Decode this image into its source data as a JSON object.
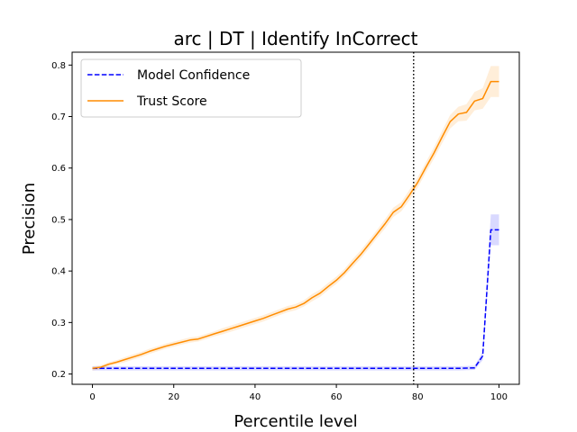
{
  "chart_data": {
    "type": "line",
    "title": "arc | DT | Identify InCorrect",
    "xlabel": "Percentile level",
    "ylabel": "Precision",
    "xlim": [
      -5,
      105
    ],
    "ylim": [
      0.18,
      0.825
    ],
    "xticks": [
      0,
      20,
      40,
      60,
      80,
      100
    ],
    "yticks": [
      0.2,
      0.3,
      0.4,
      0.5,
      0.6,
      0.7,
      0.8
    ],
    "grid": false,
    "legend": "top-left",
    "vline": {
      "x": 79,
      "style": "dotted",
      "color": "#000000"
    },
    "series": [
      {
        "name": "Model Confidence",
        "color": "#0000ff",
        "style": "dashed",
        "x": [
          0,
          10,
          20,
          30,
          40,
          50,
          60,
          70,
          80,
          90,
          94,
          96,
          98,
          100
        ],
        "y": [
          0.211,
          0.211,
          0.211,
          0.211,
          0.211,
          0.211,
          0.211,
          0.211,
          0.211,
          0.211,
          0.212,
          0.235,
          0.48,
          0.48
        ],
        "band": [
          0.004,
          0.004,
          0.004,
          0.004,
          0.004,
          0.004,
          0.004,
          0.004,
          0.004,
          0.004,
          0.004,
          0.008,
          0.03,
          0.03
        ]
      },
      {
        "name": "Trust Score",
        "color": "#ff8c00",
        "style": "solid",
        "x": [
          0,
          2,
          4,
          6,
          8,
          10,
          12,
          14,
          16,
          18,
          20,
          22,
          24,
          26,
          28,
          30,
          32,
          34,
          36,
          38,
          40,
          42,
          44,
          46,
          48,
          50,
          52,
          54,
          56,
          58,
          60,
          62,
          64,
          66,
          68,
          70,
          72,
          74,
          76,
          78,
          80,
          82,
          84,
          86,
          88,
          90,
          92,
          94,
          96,
          98,
          100
        ],
        "y": [
          0.211,
          0.213,
          0.219,
          0.223,
          0.228,
          0.233,
          0.238,
          0.244,
          0.249,
          0.254,
          0.258,
          0.262,
          0.266,
          0.268,
          0.273,
          0.278,
          0.283,
          0.288,
          0.293,
          0.298,
          0.303,
          0.308,
          0.314,
          0.32,
          0.326,
          0.33,
          0.337,
          0.348,
          0.357,
          0.37,
          0.382,
          0.397,
          0.415,
          0.432,
          0.452,
          0.472,
          0.492,
          0.514,
          0.525,
          0.548,
          0.572,
          0.601,
          0.629,
          0.66,
          0.69,
          0.705,
          0.708,
          0.73,
          0.735,
          0.768,
          0.768
        ],
        "band": [
          0.004,
          0.004,
          0.004,
          0.004,
          0.005,
          0.005,
          0.005,
          0.005,
          0.005,
          0.005,
          0.005,
          0.005,
          0.005,
          0.005,
          0.005,
          0.005,
          0.006,
          0.006,
          0.006,
          0.006,
          0.006,
          0.006,
          0.006,
          0.006,
          0.006,
          0.006,
          0.006,
          0.007,
          0.007,
          0.007,
          0.007,
          0.007,
          0.008,
          0.008,
          0.008,
          0.008,
          0.009,
          0.009,
          0.009,
          0.01,
          0.01,
          0.01,
          0.011,
          0.012,
          0.013,
          0.014,
          0.016,
          0.018,
          0.02,
          0.03,
          0.03
        ]
      }
    ]
  }
}
